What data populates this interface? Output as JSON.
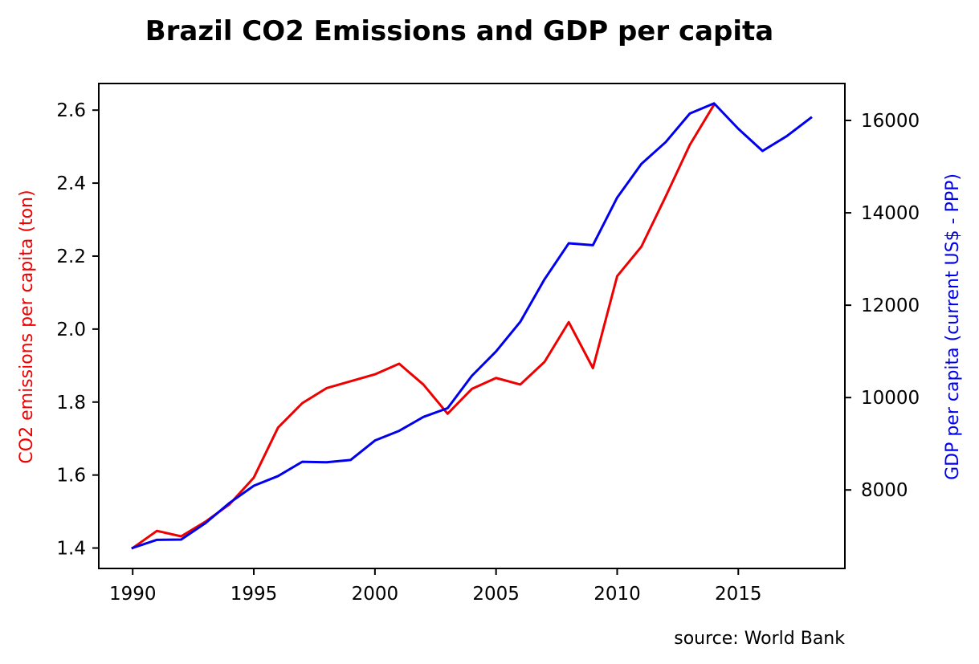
{
  "chart_data": {
    "type": "line",
    "title": "Brazil CO2 Emissions and GDP per capita",
    "xlabel": "",
    "ylabel_left": "CO2 emissions per capita (ton)",
    "ylabel_right": "GDP per capita (current US$ - PPP)",
    "source_note": "source: World Bank",
    "xlim": [
      1988.6,
      2019.4
    ],
    "ylim_left": [
      1.344,
      2.673
    ],
    "ylim_right": [
      6300,
      16800
    ],
    "x_ticks": [
      1990,
      1995,
      2000,
      2005,
      2010,
      2015
    ],
    "y_ticks_left": [
      1.4,
      1.6,
      1.8,
      2.0,
      2.2,
      2.4,
      2.6
    ],
    "y_ticks_right": [
      8000,
      10000,
      12000,
      14000,
      16000
    ],
    "grid": false,
    "series": [
      {
        "axis": "left",
        "color": "#ee0000",
        "x": [
          1990,
          1991,
          1992,
          1993,
          1994,
          1995,
          1996,
          1997,
          1998,
          1999,
          2000,
          2001,
          2002,
          2003,
          2004,
          2005,
          2006,
          2007,
          2008,
          2009,
          2010,
          2011,
          2012,
          2013,
          2014
        ],
        "values": [
          1.4,
          1.447,
          1.432,
          1.472,
          1.52,
          1.593,
          1.73,
          1.797,
          1.838,
          1.857,
          1.876,
          1.905,
          1.848,
          1.768,
          1.836,
          1.866,
          1.848,
          1.91,
          2.019,
          1.893,
          2.145,
          2.226,
          2.363,
          2.505,
          2.615
        ]
      },
      {
        "axis": "right",
        "color": "#0000ee",
        "x": [
          1990,
          1991,
          1992,
          1993,
          1994,
          1995,
          1996,
          1997,
          1998,
          1999,
          2000,
          2001,
          2002,
          2003,
          2004,
          2005,
          2006,
          2007,
          2008,
          2009,
          2010,
          2011,
          2012,
          2013,
          2014,
          2015,
          2016,
          2017,
          2018
        ],
        "values": [
          6745,
          6920,
          6925,
          7280,
          7720,
          8090,
          8300,
          8610,
          8600,
          8650,
          9070,
          9280,
          9580,
          9770,
          10470,
          11000,
          11640,
          12560,
          13340,
          13300,
          14330,
          15060,
          15530,
          16150,
          16370,
          15820,
          15340,
          15660,
          16060
        ]
      }
    ]
  },
  "colors": {
    "left_axis_label": "#ee0000",
    "right_axis_label": "#0000ee",
    "axis": "#000000"
  }
}
